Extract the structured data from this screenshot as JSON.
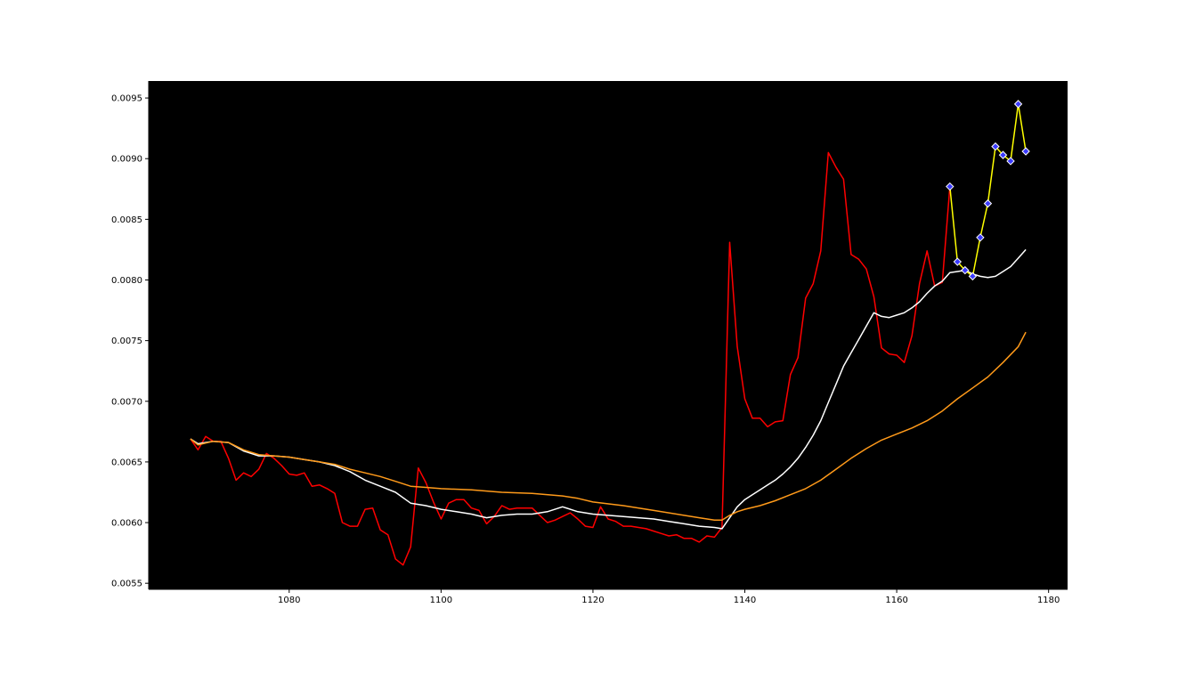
{
  "chart_data": {
    "type": "line",
    "title": "",
    "xlabel": "",
    "ylabel": "",
    "xlim": [
      1061.5,
      1182.5
    ],
    "ylim": [
      0.00545,
      0.00964
    ],
    "grid": false,
    "background": "#000000",
    "x_ticks": [
      "1080",
      "1100",
      "1120",
      "1140",
      "1160",
      "1180"
    ],
    "y_ticks": [
      "0.0055",
      "0.0060",
      "0.0065",
      "0.0070",
      "0.0075",
      "0.0080",
      "0.0085",
      "0.0090",
      "0.0095"
    ],
    "x_tick_values": [
      1080,
      1100,
      1120,
      1140,
      1160,
      1180
    ],
    "y_tick_values": [
      0.0055,
      0.006,
      0.0065,
      0.007,
      0.0075,
      0.008,
      0.0085,
      0.009,
      0.0095
    ],
    "series": [
      {
        "color": "#ff0000",
        "x": [
          1067,
          1068,
          1069,
          1070,
          1071,
          1072,
          1073,
          1074,
          1075,
          1076,
          1077,
          1078,
          1079,
          1080,
          1081,
          1082,
          1083,
          1084,
          1085,
          1086,
          1087,
          1088,
          1089,
          1090,
          1091,
          1092,
          1093,
          1094,
          1095,
          1096,
          1097,
          1098,
          1099,
          1100,
          1101,
          1102,
          1103,
          1104,
          1105,
          1106,
          1107,
          1108,
          1109,
          1110,
          1111,
          1112,
          1113,
          1114,
          1115,
          1116,
          1117,
          1118,
          1119,
          1120,
          1121,
          1122,
          1123,
          1124,
          1125,
          1126,
          1127,
          1128,
          1129,
          1130,
          1131,
          1132,
          1133,
          1134,
          1135,
          1136,
          1137,
          1138,
          1139,
          1140,
          1141,
          1142,
          1143,
          1144,
          1145,
          1146,
          1147,
          1148,
          1149,
          1150,
          1151,
          1152,
          1153,
          1154,
          1155,
          1156,
          1157,
          1158,
          1159,
          1160,
          1161,
          1162,
          1163,
          1164,
          1165,
          1166,
          1167
        ],
        "y": [
          0.00669,
          0.0066,
          0.00671,
          0.00667,
          0.00667,
          0.00653,
          0.00635,
          0.00641,
          0.00638,
          0.00644,
          0.00657,
          0.00653,
          0.00647,
          0.0064,
          0.00639,
          0.00641,
          0.0063,
          0.00631,
          0.00628,
          0.00624,
          0.006,
          0.00597,
          0.00597,
          0.00611,
          0.00612,
          0.00594,
          0.0059,
          0.0057,
          0.00565,
          0.0058,
          0.00645,
          0.00633,
          0.00617,
          0.00603,
          0.00616,
          0.00619,
          0.00619,
          0.00612,
          0.0061,
          0.00599,
          0.00605,
          0.00614,
          0.00611,
          0.00612,
          0.00612,
          0.00612,
          0.00606,
          0.006,
          0.00602,
          0.00605,
          0.00608,
          0.00603,
          0.00597,
          0.00596,
          0.00613,
          0.00603,
          0.00601,
          0.00597,
          0.00597,
          0.00596,
          0.00595,
          0.00593,
          0.00591,
          0.00589,
          0.0059,
          0.00587,
          0.00587,
          0.00584,
          0.00589,
          0.00588,
          0.00596,
          0.00831,
          0.00745,
          0.00702,
          0.00686,
          0.00686,
          0.00679,
          0.00683,
          0.00684,
          0.00722,
          0.00736,
          0.00785,
          0.00797,
          0.00824,
          0.00905,
          0.00893,
          0.00883,
          0.00821,
          0.00817,
          0.00809,
          0.00786,
          0.00744,
          0.00739,
          0.00738,
          0.00732,
          0.00754,
          0.00797,
          0.00824,
          0.00795,
          0.00798,
          0.00877
        ]
      },
      {
        "color": "#ffffff",
        "x": [
          1067,
          1068,
          1070,
          1072,
          1074,
          1076,
          1078,
          1080,
          1082,
          1084,
          1086,
          1088,
          1090,
          1092,
          1094,
          1096,
          1098,
          1100,
          1102,
          1104,
          1106,
          1108,
          1110,
          1112,
          1114,
          1116,
          1118,
          1120,
          1122,
          1124,
          1126,
          1128,
          1130,
          1132,
          1134,
          1136,
          1137,
          1138,
          1139,
          1140,
          1141,
          1142,
          1143,
          1144,
          1145,
          1146,
          1147,
          1148,
          1149,
          1150,
          1151,
          1152,
          1153,
          1154,
          1155,
          1156,
          1157,
          1158,
          1159,
          1160,
          1161,
          1162,
          1163,
          1164,
          1165,
          1166,
          1167,
          1168,
          1169,
          1170,
          1171,
          1172,
          1173,
          1174,
          1175,
          1176,
          1177
        ],
        "y": [
          0.00669,
          0.00665,
          0.00667,
          0.00666,
          0.00659,
          0.00655,
          0.00655,
          0.00654,
          0.00652,
          0.0065,
          0.00647,
          0.00642,
          0.00635,
          0.0063,
          0.00625,
          0.00616,
          0.00614,
          0.00611,
          0.00609,
          0.00607,
          0.00604,
          0.00606,
          0.00607,
          0.00607,
          0.00609,
          0.00613,
          0.00609,
          0.00607,
          0.00606,
          0.00605,
          0.00604,
          0.00603,
          0.00601,
          0.00599,
          0.00597,
          0.00596,
          0.00595,
          0.00604,
          0.00613,
          0.00619,
          0.00623,
          0.00627,
          0.00631,
          0.00635,
          0.0064,
          0.00646,
          0.00653,
          0.00662,
          0.00672,
          0.00684,
          0.00699,
          0.00714,
          0.00729,
          0.0074,
          0.00751,
          0.00762,
          0.00773,
          0.0077,
          0.00769,
          0.00771,
          0.00773,
          0.00777,
          0.00782,
          0.00789,
          0.00795,
          0.00799,
          0.00806,
          0.00807,
          0.00808,
          0.00805,
          0.00803,
          0.00802,
          0.00803,
          0.00807,
          0.00811,
          0.00818,
          0.00825
        ]
      },
      {
        "color": "#ff9a1a",
        "x": [
          1067,
          1068,
          1070,
          1072,
          1074,
          1076,
          1078,
          1080,
          1082,
          1084,
          1086,
          1088,
          1090,
          1092,
          1094,
          1096,
          1098,
          1100,
          1104,
          1108,
          1112,
          1116,
          1118,
          1120,
          1124,
          1128,
          1132,
          1134,
          1136,
          1137,
          1138,
          1139,
          1140,
          1142,
          1144,
          1146,
          1148,
          1150,
          1152,
          1154,
          1156,
          1158,
          1160,
          1162,
          1164,
          1166,
          1168,
          1170,
          1172,
          1174,
          1176,
          1177
        ],
        "y": [
          0.00669,
          0.00664,
          0.00667,
          0.00666,
          0.0066,
          0.00656,
          0.00655,
          0.00654,
          0.00652,
          0.0065,
          0.00648,
          0.00644,
          0.00641,
          0.00638,
          0.00634,
          0.0063,
          0.00629,
          0.00628,
          0.00627,
          0.00625,
          0.00624,
          0.00622,
          0.0062,
          0.00617,
          0.00614,
          0.0061,
          0.00606,
          0.00604,
          0.00602,
          0.00602,
          0.00606,
          0.00609,
          0.00611,
          0.00614,
          0.00618,
          0.00623,
          0.00628,
          0.00635,
          0.00644,
          0.00653,
          0.00661,
          0.00668,
          0.00673,
          0.00678,
          0.00684,
          0.00692,
          0.00702,
          0.00711,
          0.0072,
          0.00732,
          0.00745,
          0.00757
        ]
      },
      {
        "color": "#ffff00",
        "marker": "diamond",
        "marker_fill": "#3a3aff",
        "marker_edge": "#ffffff",
        "x": [
          1167,
          1168,
          1169,
          1170,
          1171,
          1172,
          1173,
          1174,
          1175,
          1176,
          1177
        ],
        "y": [
          0.00877,
          0.00815,
          0.00808,
          0.00803,
          0.00835,
          0.00863,
          0.0091,
          0.00903,
          0.00898,
          0.00945,
          0.00906
        ]
      }
    ]
  }
}
